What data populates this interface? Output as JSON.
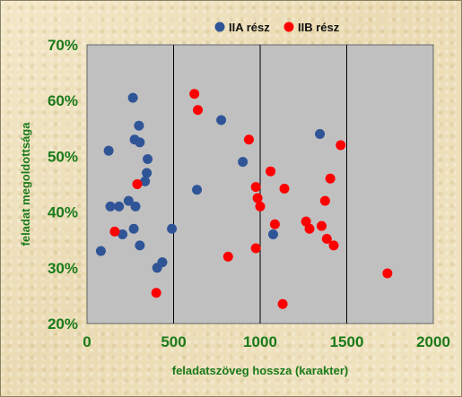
{
  "chart_data": {
    "type": "scatter",
    "xlabel": "feladatszöveg hossza (karakter)",
    "ylabel": "feladat megoldottsága",
    "xlim": [
      0,
      2000
    ],
    "ylim": [
      0.2,
      0.7
    ],
    "x_ticks": [
      0,
      500,
      1000,
      1500,
      2000
    ],
    "x_tick_labels": [
      "0",
      "500",
      "1000",
      "1500",
      "2000"
    ],
    "y_ticks": [
      0.2,
      0.3,
      0.4,
      0.5,
      0.6,
      0.7
    ],
    "y_tick_labels": [
      "20%",
      "30%",
      "40%",
      "50%",
      "60%",
      "70%"
    ],
    "grid": "vertical lines at 1000, 1500, 2000",
    "legend_position": "top",
    "plot_background": "#c0c0c0",
    "series": [
      {
        "name": "IIA rész",
        "color": "#2f5597",
        "points": [
          [
            80,
            0.33
          ],
          [
            125,
            0.51
          ],
          [
            135,
            0.41
          ],
          [
            185,
            0.41
          ],
          [
            205,
            0.36
          ],
          [
            240,
            0.42
          ],
          [
            265,
            0.605
          ],
          [
            270,
            0.37
          ],
          [
            275,
            0.53
          ],
          [
            280,
            0.41
          ],
          [
            300,
            0.555
          ],
          [
            305,
            0.525
          ],
          [
            305,
            0.34
          ],
          [
            335,
            0.455
          ],
          [
            345,
            0.47
          ],
          [
            350,
            0.495
          ],
          [
            405,
            0.3
          ],
          [
            435,
            0.31
          ],
          [
            490,
            0.37
          ],
          [
            635,
            0.44
          ],
          [
            775,
            0.565
          ],
          [
            900,
            0.49
          ],
          [
            1075,
            0.36
          ],
          [
            1345,
            0.54
          ]
        ]
      },
      {
        "name": "IIB rész",
        "color": "#ff0000",
        "points": [
          [
            160,
            0.365
          ],
          [
            290,
            0.45
          ],
          [
            400,
            0.255
          ],
          [
            620,
            0.612
          ],
          [
            640,
            0.583
          ],
          [
            815,
            0.32
          ],
          [
            935,
            0.53
          ],
          [
            975,
            0.335
          ],
          [
            975,
            0.445
          ],
          [
            985,
            0.425
          ],
          [
            1000,
            0.41
          ],
          [
            1060,
            0.473
          ],
          [
            1085,
            0.378
          ],
          [
            1130,
            0.235
          ],
          [
            1140,
            0.442
          ],
          [
            1265,
            0.383
          ],
          [
            1285,
            0.37
          ],
          [
            1355,
            0.375
          ],
          [
            1375,
            0.42
          ],
          [
            1385,
            0.352
          ],
          [
            1405,
            0.46
          ],
          [
            1425,
            0.34
          ],
          [
            1465,
            0.52
          ],
          [
            1735,
            0.29
          ]
        ]
      }
    ]
  }
}
